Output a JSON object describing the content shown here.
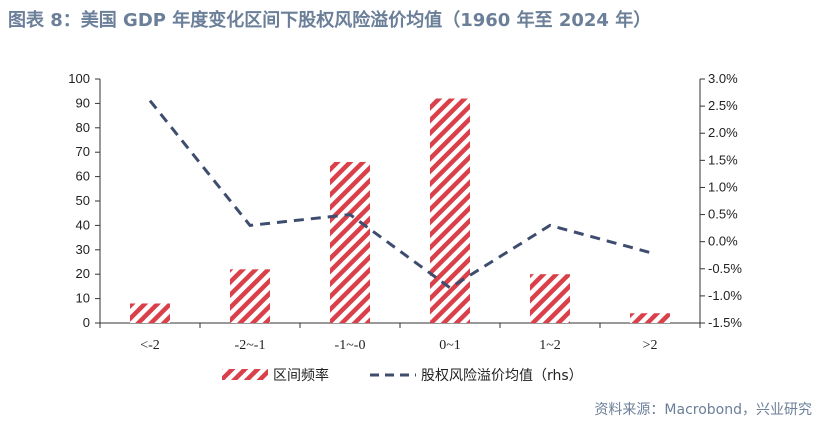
{
  "title": "图表 8：美国 GDP 年度变化区间下股权风险溢价均值（1960 年至 2024 年）",
  "source": "资料来源：Macrobond，兴业研究",
  "colors": {
    "bar_stripe": "#d9404a",
    "line": "#3e4d6e",
    "title": "#6b7f99"
  },
  "chart_data": {
    "type": "bar",
    "categories": [
      "<-2",
      "-2~-1",
      "-1~-0",
      "0~1",
      "1~2",
      ">2"
    ],
    "left_axis": {
      "ylim": [
        0,
        100
      ],
      "ticks": [
        "0",
        "10",
        "20",
        "30",
        "40",
        "50",
        "60",
        "70",
        "80",
        "90",
        "100"
      ]
    },
    "right_axis": {
      "ylim": [
        -1.5,
        3.0
      ],
      "ticks": [
        "-1.5%",
        "-1.0%",
        "-0.5%",
        "0.0%",
        "0.5%",
        "1.0%",
        "1.5%",
        "2.0%",
        "2.5%",
        "3.0%"
      ]
    },
    "series": [
      {
        "name": "区间频率",
        "type": "bar",
        "axis": "left",
        "values": [
          8,
          22,
          66,
          92,
          20,
          4
        ]
      },
      {
        "name": "股权风险溢价均值（rhs）",
        "type": "line",
        "axis": "right",
        "style": "dashed",
        "values": [
          2.6,
          0.3,
          0.5,
          -0.85,
          0.3,
          -0.2
        ]
      }
    ],
    "legend_position": "bottom"
  }
}
